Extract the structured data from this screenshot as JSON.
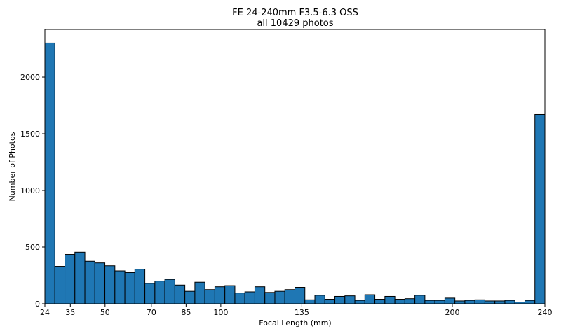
{
  "chart_data": {
    "type": "bar",
    "title": "FE 24-240mm F3.5-6.3 OSS",
    "subtitle": "all 10429 photos",
    "xlabel": "Focal Length (mm)",
    "ylabel": "Number of Photos",
    "xlim": [
      24,
      240
    ],
    "ylim": [
      0,
      2420
    ],
    "x_ticks": [
      24,
      35,
      50,
      70,
      85,
      100,
      135,
      200,
      240
    ],
    "y_ticks": [
      0,
      500,
      1000,
      1500,
      2000
    ],
    "bar_color": "#1f77b4",
    "edge_color": "#000000",
    "grid": false,
    "bins": {
      "start": 24,
      "end": 240,
      "values": [
        2300,
        330,
        435,
        455,
        375,
        360,
        335,
        290,
        275,
        305,
        180,
        200,
        215,
        165,
        110,
        190,
        125,
        150,
        160,
        95,
        105,
        150,
        100,
        110,
        125,
        145,
        35,
        75,
        40,
        65,
        70,
        30,
        80,
        40,
        65,
        40,
        45,
        75,
        30,
        30,
        50,
        25,
        30,
        35,
        25,
        25,
        30,
        15,
        30,
        1670
      ]
    }
  }
}
